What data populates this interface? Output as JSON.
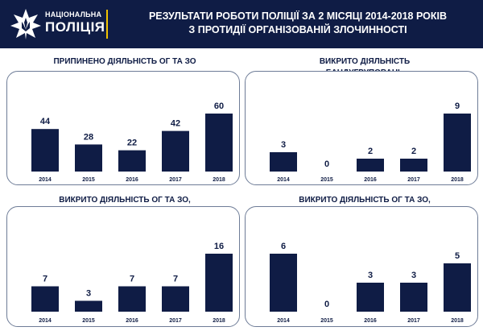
{
  "header": {
    "logo_line1": "НАЦІОНАЛЬНА",
    "logo_line2": "ПОЛІЦІЯ",
    "title_line1": "РЕЗУЛЬТАТИ РОБОТИ ПОЛІЦІЇ ЗА 2 МІСЯЦІ 2014-2018 РОКІВ",
    "title_line2": "З ПРОТИДІЇ ОРГАНІЗОВАНІЙ ЗЛОЧИННОСТІ"
  },
  "colors": {
    "header_bg": "#0f1c45",
    "bar": "#0f1c45",
    "accent": "#f2c200",
    "panel_border": "#6e7c97"
  },
  "chart_data": [
    {
      "type": "bar",
      "title": "ПРИПИНЕНО ДІЯЛЬНІСТЬ ОГ ТА ЗО",
      "categories": [
        "2014",
        "2015",
        "2016",
        "2017",
        "2018"
      ],
      "values": [
        44,
        28,
        22,
        42,
        60
      ],
      "ylim": [
        0,
        60
      ]
    },
    {
      "type": "bar",
      "title": "ВИКРИТО ДІЯЛЬНІСТЬ БАНДУГРУПОВАНЬ",
      "categories": [
        "2014",
        "2015",
        "2016",
        "2017",
        "2018"
      ],
      "values": [
        3,
        0,
        2,
        2,
        9
      ],
      "ylim": [
        0,
        9
      ]
    },
    {
      "type": "bar",
      "title": "ВИКРИТО ДІЯЛЬНІСТЬ ОГ ТА ЗО, ПРИЧЕТНИХ ДО НЕЗАКОННОГО ОБІГУ НАРКОТИКІВ",
      "categories": [
        "2014",
        "2015",
        "2016",
        "2017",
        "2018"
      ],
      "values": [
        7,
        3,
        7,
        7,
        16
      ],
      "ylim": [
        0,
        16
      ]
    },
    {
      "type": "bar",
      "title": "ВИКРИТО ДІЯЛЬНІСТЬ ОГ ТА ЗО, ПРИЧЕТНИХ ДО НЕЗАКОННОГО ОБІГУ ЗБРОЇ",
      "categories": [
        "2014",
        "2015",
        "2016",
        "2017",
        "2018"
      ],
      "values": [
        6,
        0,
        3,
        3,
        5
      ],
      "ylim": [
        0,
        6
      ]
    }
  ]
}
